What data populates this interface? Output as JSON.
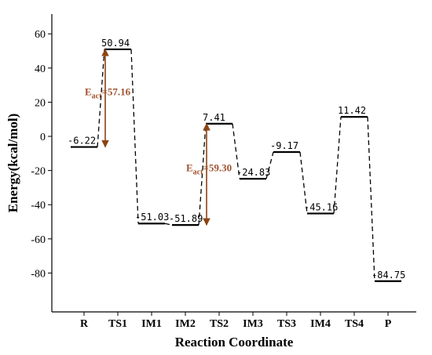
{
  "chart_data": {
    "type": "line",
    "xlabel": "Reaction Coordinate",
    "ylabel": "Energy(kcal/mol)",
    "ylim": [
      -95,
      65
    ],
    "yticks": [
      60,
      40,
      20,
      0,
      -20,
      -40,
      -60,
      -80
    ],
    "categories": [
      "R",
      "TS1",
      "IM1",
      "IM2",
      "TS2",
      "IM3",
      "TS3",
      "IM4",
      "TS4",
      "P"
    ],
    "values": [
      -6.22,
      50.94,
      -51.03,
      -51.89,
      7.41,
      -24.83,
      -9.17,
      -45.16,
      11.42,
      -84.75
    ],
    "value_labels": [
      "-6.22",
      "50.94",
      "-51.03",
      "-51.89",
      "7.41",
      "-24.83",
      "-9.17",
      "-45.16",
      "11.42",
      "-84.75"
    ],
    "annotations": [
      {
        "from": "R",
        "to": "TS1",
        "label_main": "E",
        "label_sub": "act",
        "label_value": "=57.16"
      },
      {
        "from": "IM2",
        "to": "TS2",
        "label_main": "E",
        "label_sub": "act",
        "label_value": "=59.30"
      }
    ],
    "colors": {
      "line": "#000000",
      "arrow": "#8b4513",
      "annotation_text": "#a0522d"
    }
  }
}
